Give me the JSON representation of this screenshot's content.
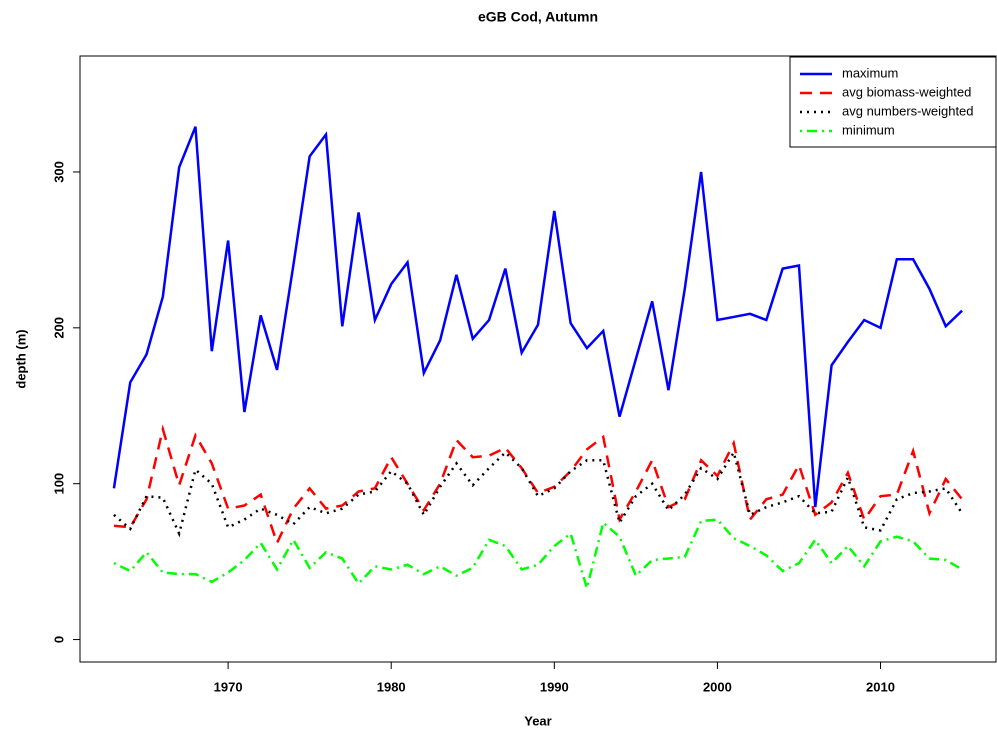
{
  "chart_data": {
    "type": "line",
    "title": "eGB Cod, Autumn",
    "x_label": "Year",
    "y_label": "depth (m)",
    "x": [
      1963,
      1964,
      1965,
      1966,
      1967,
      1968,
      1969,
      1970,
      1971,
      1972,
      1973,
      1974,
      1975,
      1976,
      1977,
      1978,
      1979,
      1980,
      1981,
      1982,
      1983,
      1984,
      1985,
      1986,
      1987,
      1988,
      1989,
      1990,
      1991,
      1992,
      1993,
      1994,
      1995,
      1996,
      1997,
      1998,
      1999,
      2000,
      2001,
      2002,
      2003,
      2004,
      2005,
      2006,
      2007,
      2008,
      2009,
      2010,
      2011,
      2012,
      2013,
      2014,
      2015
    ],
    "series": [
      {
        "name": "maximum",
        "color": "#0000ff",
        "linestyle": "solid",
        "values": [
          97,
          165,
          183,
          220,
          303,
          329,
          185,
          256,
          146,
          208,
          173,
          240,
          310,
          324,
          201,
          274,
          205,
          228,
          242,
          171,
          192,
          234,
          193,
          205,
          238,
          184,
          202,
          275,
          203,
          187,
          198,
          143,
          180,
          217,
          160,
          225,
          300,
          205,
          207,
          209,
          205,
          238,
          240,
          85,
          176,
          191,
          205,
          200,
          244,
          244,
          225,
          201,
          211
        ]
      },
      {
        "name": "avg biomass-weighted",
        "color": "#ff0000",
        "linestyle": "dashed",
        "values": [
          73,
          72,
          90,
          135,
          99,
          131,
          113,
          84,
          86,
          93,
          62,
          84,
          97,
          84,
          86,
          95,
          97,
          117,
          100,
          83,
          100,
          128,
          117,
          118,
          123,
          110,
          94,
          98,
          108,
          122,
          130,
          77,
          95,
          115,
          85,
          90,
          115,
          105,
          126,
          77,
          90,
          93,
          112,
          80,
          88,
          107,
          77,
          92,
          93,
          121,
          81,
          103,
          90
        ]
      },
      {
        "name": "avg numbers-weighted",
        "color": "#000000",
        "linestyle": "dotted",
        "values": [
          80,
          71,
          92,
          91,
          68,
          109,
          100,
          72,
          77,
          84,
          80,
          74,
          85,
          81,
          84,
          93,
          95,
          108,
          100,
          80,
          98,
          113,
          99,
          110,
          120,
          110,
          92,
          97,
          108,
          115,
          115,
          75,
          92,
          100,
          83,
          93,
          110,
          103,
          120,
          80,
          85,
          88,
          92,
          81,
          82,
          104,
          72,
          70,
          90,
          94,
          95,
          97,
          81
        ]
      },
      {
        "name": "minimum",
        "color": "#00ff00",
        "linestyle": "dotdash",
        "values": [
          49,
          44,
          56,
          43,
          42,
          42,
          37,
          43,
          51,
          62,
          45,
          64,
          46,
          56,
          52,
          36,
          47,
          45,
          48,
          42,
          47,
          41,
          46,
          64,
          60,
          45,
          48,
          60,
          68,
          33,
          75,
          66,
          41,
          51,
          52,
          53,
          76,
          77,
          65,
          60,
          54,
          44,
          49,
          64,
          49,
          60,
          47,
          63,
          66,
          63,
          52,
          51,
          45
        ]
      }
    ],
    "xlim": [
      1960.92,
      2017.08
    ],
    "xticks": [
      1970,
      1980,
      1990,
      2000,
      2010
    ],
    "ylim": [
      -14.4,
      374.4
    ],
    "yticks": [
      0,
      100,
      200,
      300
    ],
    "legend": "top-right"
  }
}
